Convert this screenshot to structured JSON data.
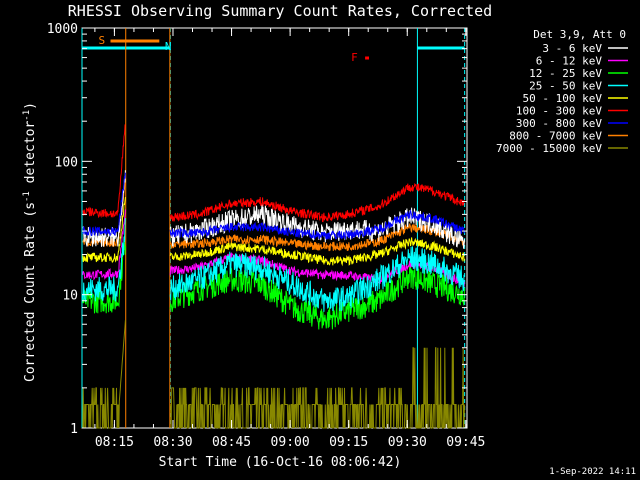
{
  "chart_data": {
    "type": "line",
    "title": "RHESSI Observing Summary Count Rates, Corrected",
    "xlabel": "Start Time (16-Oct-16 08:06:42)",
    "ylabel_main": "Corrected Count Rate (s",
    "ylabel_sup1": "-1",
    "ylabel_mid": " detector",
    "ylabel_sup2": "-1",
    "ylabel_end": ")",
    "yscale": "log",
    "ylim": [
      1,
      1000
    ],
    "xlim_minutes": [
      0,
      98.6
    ],
    "x_tick_labels": [
      "08:15",
      "08:30",
      "08:45",
      "09:00",
      "09:15",
      "09:30",
      "09:45"
    ],
    "x_tick_minutes": [
      8.3,
      23.3,
      38.3,
      53.3,
      68.3,
      83.3,
      98.3
    ],
    "y_tick_labels": [
      "1",
      "10",
      "100",
      "1000"
    ],
    "y_tick_values": [
      1,
      10,
      100,
      1000
    ],
    "legend_header": "Det 3,9, Att 0",
    "legend_placement": "right",
    "date_stamp": "1-Sep-2022 14:11",
    "night_intervals_minutes": [
      [
        0,
        22.6
      ],
      [
        85.9,
        98.0
      ]
    ],
    "flags": [
      {
        "label": "S",
        "start": 7.3,
        "end": 19.8,
        "color": "#ff8000"
      },
      {
        "label": "N",
        "start": 0,
        "end": 20.2,
        "color": "#00ffff"
      },
      {
        "label": "F",
        "start": 72.5,
        "end": 73.5,
        "color": "#ff0000"
      }
    ],
    "data_gap_minutes": [
      11.2,
      22.5
    ],
    "series": [
      {
        "name": "3 - 6 keV",
        "color": "#ffffff",
        "x": [
          0,
          22.6,
          30,
          38,
          46,
          54,
          62,
          68,
          76,
          84,
          90,
          98
        ],
        "values": [
          27,
          27,
          30,
          36,
          40,
          33,
          29,
          31,
          30,
          38,
          34,
          24
        ]
      },
      {
        "name": "6 - 12 keV",
        "color": "#ff00ff",
        "x": [
          0,
          22.6,
          30,
          38,
          46,
          54,
          62,
          68,
          76,
          84,
          90,
          98
        ],
        "values": [
          14,
          15,
          16,
          19,
          18,
          15,
          14,
          14,
          13,
          17,
          16,
          12
        ]
      },
      {
        "name": "12 - 25 keV",
        "color": "#00ff00",
        "x": [
          0,
          22.6,
          30,
          38,
          46,
          54,
          62,
          68,
          76,
          84,
          90,
          98
        ],
        "values": [
          9,
          9,
          11,
          13,
          12,
          8,
          6.5,
          7.5,
          9,
          14,
          12,
          10
        ]
      },
      {
        "name": "25 - 50 keV",
        "color": "#00ffff",
        "x": [
          0,
          22.6,
          30,
          38,
          46,
          54,
          62,
          68,
          76,
          84,
          90,
          98
        ],
        "values": [
          11,
          11,
          13,
          17,
          16,
          12,
          9,
          9.5,
          13,
          19,
          17,
          13
        ]
      },
      {
        "name": "50 - 100 keV",
        "color": "#ffff00",
        "x": [
          0,
          22.6,
          30,
          38,
          46,
          54,
          62,
          68,
          76,
          84,
          90,
          98
        ],
        "values": [
          19,
          19,
          20,
          23,
          22,
          20,
          18,
          18,
          20,
          25,
          23,
          19
        ]
      },
      {
        "name": "100 - 300 keV",
        "color": "#ff0000",
        "x": [
          0,
          22.6,
          30,
          38,
          46,
          54,
          62,
          68,
          76,
          84,
          90,
          98
        ],
        "values": [
          42,
          38,
          40,
          48,
          50,
          42,
          38,
          40,
          46,
          65,
          60,
          48
        ]
      },
      {
        "name": "300 - 800 keV",
        "color": "#0000ff",
        "x": [
          0,
          22.6,
          30,
          38,
          46,
          54,
          62,
          68,
          76,
          84,
          90,
          98
        ],
        "values": [
          30,
          29,
          29,
          32,
          32,
          29,
          28,
          28,
          31,
          40,
          37,
          30
        ]
      },
      {
        "name": "800 - 7000 keV",
        "color": "#ff8000",
        "x": [
          0,
          22.6,
          30,
          38,
          46,
          54,
          62,
          68,
          76,
          84,
          90,
          98
        ],
        "values": [
          25,
          24,
          24,
          26,
          26,
          24,
          23,
          23,
          25,
          32,
          30,
          25
        ]
      },
      {
        "name": "7000 - 15000 keV",
        "color": "#888800",
        "x": [
          0,
          22.6,
          30,
          38,
          46,
          54,
          62,
          68,
          76,
          84,
          90,
          98
        ],
        "values": [
          1.5,
          1.5,
          1.5,
          2,
          2,
          1.5,
          1.5,
          1.5,
          1.5,
          3.5,
          3,
          1.5
        ]
      }
    ]
  }
}
